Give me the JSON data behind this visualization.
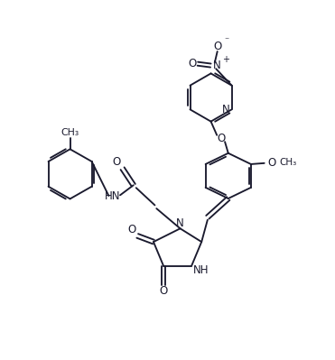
{
  "bg_color": "#ffffff",
  "line_color": "#1a1a2e",
  "figsize": [
    3.71,
    3.99
  ],
  "dpi": 100,
  "xlim": [
    0,
    10
  ],
  "ylim": [
    0,
    10.75
  ]
}
